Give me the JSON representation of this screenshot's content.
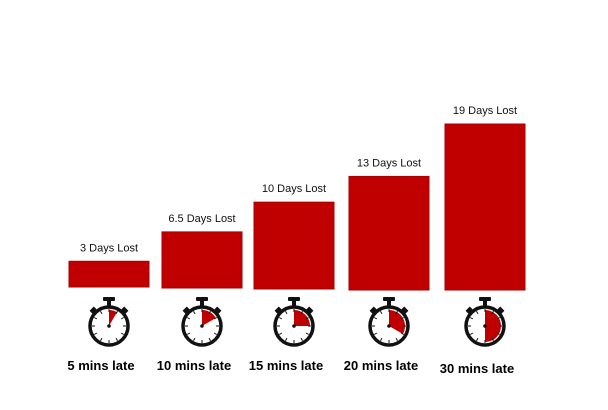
{
  "chart_data": {
    "type": "bar",
    "title": "",
    "xlabel": "",
    "ylabel": "",
    "ylim": [
      0,
      19
    ],
    "grid": false,
    "legend": "none",
    "categories": [
      "5 mins late",
      "10 mins late",
      "15 mins late",
      "20 mins late",
      "30 mins late"
    ],
    "values": [
      3,
      6.5,
      10,
      13,
      19
    ],
    "data_labels": [
      "3 Days Lost",
      "6.5 Days Lost",
      "10 Days Lost",
      "13 Days Lost",
      "19 Days Lost"
    ],
    "minutes_late": [
      5,
      10,
      15,
      20,
      30
    ],
    "icon": "stopwatch-icon",
    "colors": {
      "bar": "#c00000",
      "bar_edge": "#a80000",
      "icon_fill": "#c00000",
      "icon_outline": "#111111"
    }
  }
}
